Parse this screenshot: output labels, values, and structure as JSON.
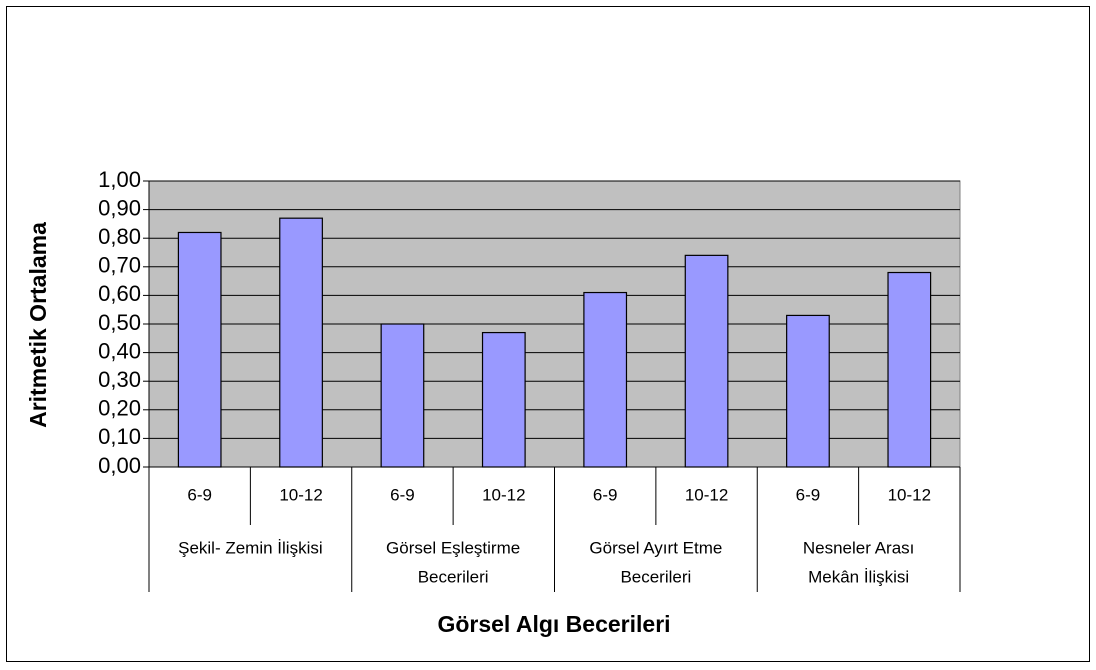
{
  "chart_data": {
    "type": "bar",
    "x_label": "Görsel Algı Becerileri",
    "y_label": "Aritmetik Ortalama",
    "categories": [
      "6-9",
      "10-12",
      "6-9",
      "10-12",
      "6-9",
      "10-12",
      "6-9",
      "10-12"
    ],
    "groups": [
      {
        "lines": [
          "Şekil-   Zemin İlişkisi"
        ]
      },
      {
        "lines": [
          "Görsel Eşleştirme",
          "Becerileri"
        ]
      },
      {
        "lines": [
          "Görsel Ayırt Etme",
          "Becerileri"
        ]
      },
      {
        "lines": [
          "Nesneler Arası",
          "Mekân İlişkisi"
        ]
      }
    ],
    "values": [
      0.82,
      0.87,
      0.5,
      0.47,
      0.61,
      0.74,
      0.53,
      0.68
    ],
    "color": "#9999ff",
    "ylim": [
      0,
      1
    ],
    "yticks": [
      {
        "value": 0,
        "label": "0,00"
      },
      {
        "value": 0.1,
        "label": "0,10"
      },
      {
        "value": 0.2,
        "label": "0,20"
      },
      {
        "value": 0.3,
        "label": "0,30"
      },
      {
        "value": 0.4,
        "label": "0,40"
      },
      {
        "value": 0.5,
        "label": "0,50"
      },
      {
        "value": 0.6,
        "label": "0,60"
      },
      {
        "value": 0.7,
        "label": "0,70"
      },
      {
        "value": 0.8,
        "label": "0,80"
      },
      {
        "value": 0.9,
        "label": "0,90"
      },
      {
        "value": 1,
        "label": "1,00"
      }
    ],
    "grid": true
  }
}
